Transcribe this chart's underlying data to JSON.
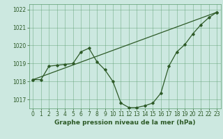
{
  "title": "Graphe pression niveau de la mer (hPa)",
  "bg_color": "#cce8e0",
  "grid_color": "#5a9c6e",
  "line_color": "#2d5a27",
  "xlim": [
    -0.5,
    23.5
  ],
  "ylim": [
    1016.5,
    1022.3
  ],
  "yticks": [
    1017,
    1018,
    1019,
    1020,
    1021,
    1022
  ],
  "xticks": [
    0,
    1,
    2,
    3,
    4,
    5,
    6,
    7,
    8,
    9,
    10,
    11,
    12,
    13,
    14,
    15,
    16,
    17,
    18,
    19,
    20,
    21,
    22,
    23
  ],
  "curve_x": [
    0,
    1,
    2,
    3,
    4,
    5,
    6,
    7,
    8,
    9,
    10,
    11,
    12,
    13,
    14,
    15,
    16,
    17,
    18,
    19,
    20,
    21,
    22,
    23
  ],
  "curve_y": [
    1018.1,
    1018.1,
    1018.85,
    1018.9,
    1018.95,
    1019.0,
    1019.65,
    1019.85,
    1019.1,
    1018.65,
    1018.0,
    1016.8,
    1016.55,
    1016.55,
    1016.65,
    1016.8,
    1017.35,
    1018.85,
    1019.65,
    1020.05,
    1020.65,
    1021.15,
    1021.55,
    1021.85
  ],
  "trend_x": [
    0,
    23
  ],
  "trend_y": [
    1018.1,
    1021.85
  ],
  "tick_fontsize": 5.5,
  "label_fontsize": 6.5
}
